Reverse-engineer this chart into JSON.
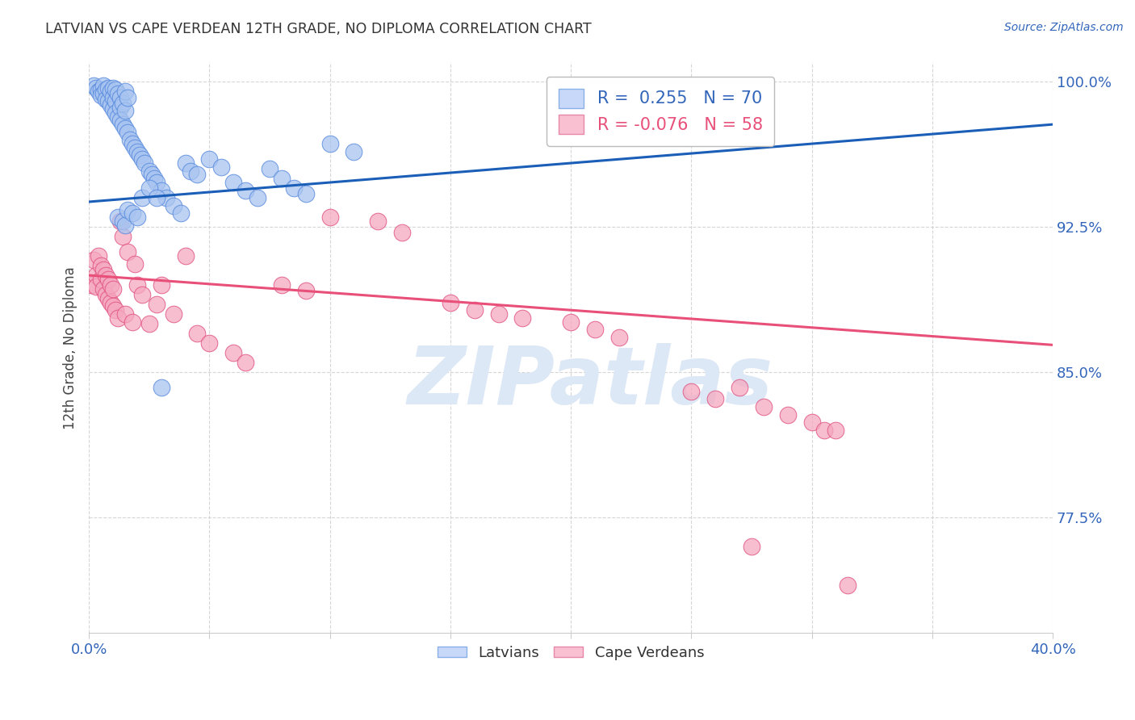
{
  "title": "LATVIAN VS CAPE VERDEAN 12TH GRADE, NO DIPLOMA CORRELATION CHART",
  "source": "Source: ZipAtlas.com",
  "ylabel": "12th Grade, No Diploma",
  "x_min": 0.0,
  "x_max": 0.4,
  "y_min": 0.715,
  "y_max": 1.01,
  "x_ticks": [
    0.0,
    0.05,
    0.1,
    0.15,
    0.2,
    0.25,
    0.3,
    0.35,
    0.4
  ],
  "y_ticks": [
    0.775,
    0.85,
    0.925,
    1.0
  ],
  "y_tick_labels": [
    "77.5%",
    "85.0%",
    "92.5%",
    "100.0%"
  ],
  "latvian_R": 0.255,
  "latvian_N": 70,
  "capeverdean_R": -0.076,
  "capeverdean_N": 58,
  "latvian_color": "#a8c4f0",
  "capeverdean_color": "#f5a8c0",
  "latvian_edge_color": "#5588dd",
  "capeverdean_edge_color": "#e05080",
  "latvian_line_color": "#1a5eb8",
  "capeverdean_line_color": "#e8507a",
  "background_color": "#ffffff",
  "grid_color": "#cccccc",
  "title_color": "#333333",
  "axis_tick_color": "#3366bb",
  "watermark_text": "ZIPatlas",
  "watermark_color": "#dce8f5",
  "legend_label_blue": "R =  0.255   N = 70",
  "legend_label_pink": "R = -0.076   N = 58",
  "latvian_trend_x0": 0.0,
  "latvian_trend_y0": 0.938,
  "latvian_trend_x1": 0.4,
  "latvian_trend_y1": 0.978,
  "capeverdean_trend_x0": 0.0,
  "capeverdean_trend_y0": 0.9,
  "capeverdean_trend_x1": 0.4,
  "capeverdean_trend_y1": 0.864,
  "latvian_x": [
    0.002,
    0.003,
    0.004,
    0.005,
    0.005,
    0.006,
    0.006,
    0.007,
    0.007,
    0.008,
    0.008,
    0.009,
    0.009,
    0.01,
    0.01,
    0.01,
    0.011,
    0.011,
    0.011,
    0.012,
    0.012,
    0.013,
    0.013,
    0.013,
    0.014,
    0.014,
    0.015,
    0.015,
    0.015,
    0.016,
    0.016,
    0.017,
    0.018,
    0.019,
    0.02,
    0.021,
    0.022,
    0.023,
    0.025,
    0.026,
    0.027,
    0.028,
    0.03,
    0.032,
    0.035,
    0.038,
    0.04,
    0.042,
    0.045,
    0.05,
    0.055,
    0.06,
    0.065,
    0.07,
    0.075,
    0.08,
    0.085,
    0.09,
    0.1,
    0.11,
    0.012,
    0.014,
    0.015,
    0.016,
    0.018,
    0.02,
    0.022,
    0.025,
    0.028,
    0.03
  ],
  "latvian_y": [
    0.998,
    0.997,
    0.995,
    0.996,
    0.993,
    0.998,
    0.994,
    0.996,
    0.991,
    0.997,
    0.99,
    0.995,
    0.988,
    0.997,
    0.992,
    0.986,
    0.996,
    0.99,
    0.984,
    0.994,
    0.982,
    0.992,
    0.987,
    0.98,
    0.989,
    0.978,
    0.995,
    0.985,
    0.976,
    0.992,
    0.974,
    0.97,
    0.968,
    0.966,
    0.964,
    0.962,
    0.96,
    0.958,
    0.954,
    0.952,
    0.95,
    0.948,
    0.944,
    0.94,
    0.936,
    0.932,
    0.958,
    0.954,
    0.952,
    0.96,
    0.956,
    0.948,
    0.944,
    0.94,
    0.955,
    0.95,
    0.945,
    0.942,
    0.968,
    0.964,
    0.93,
    0.928,
    0.926,
    0.934,
    0.932,
    0.93,
    0.94,
    0.945,
    0.94,
    0.842
  ],
  "capeverdean_x": [
    0.001,
    0.002,
    0.003,
    0.003,
    0.004,
    0.005,
    0.005,
    0.006,
    0.006,
    0.007,
    0.007,
    0.008,
    0.008,
    0.009,
    0.009,
    0.01,
    0.01,
    0.011,
    0.012,
    0.013,
    0.014,
    0.015,
    0.016,
    0.018,
    0.019,
    0.02,
    0.022,
    0.025,
    0.028,
    0.03,
    0.035,
    0.04,
    0.045,
    0.05,
    0.06,
    0.065,
    0.08,
    0.09,
    0.1,
    0.12,
    0.13,
    0.15,
    0.16,
    0.17,
    0.18,
    0.2,
    0.21,
    0.22,
    0.25,
    0.26,
    0.27,
    0.275,
    0.28,
    0.29,
    0.3,
    0.305,
    0.31,
    0.315
  ],
  "capeverdean_y": [
    0.895,
    0.908,
    0.9,
    0.894,
    0.91,
    0.898,
    0.905,
    0.893,
    0.903,
    0.89,
    0.9,
    0.888,
    0.898,
    0.886,
    0.895,
    0.884,
    0.893,
    0.882,
    0.878,
    0.928,
    0.92,
    0.88,
    0.912,
    0.876,
    0.906,
    0.895,
    0.89,
    0.875,
    0.885,
    0.895,
    0.88,
    0.91,
    0.87,
    0.865,
    0.86,
    0.855,
    0.895,
    0.892,
    0.93,
    0.928,
    0.922,
    0.886,
    0.882,
    0.88,
    0.878,
    0.876,
    0.872,
    0.868,
    0.84,
    0.836,
    0.842,
    0.76,
    0.832,
    0.828,
    0.824,
    0.82,
    0.82,
    0.74
  ]
}
